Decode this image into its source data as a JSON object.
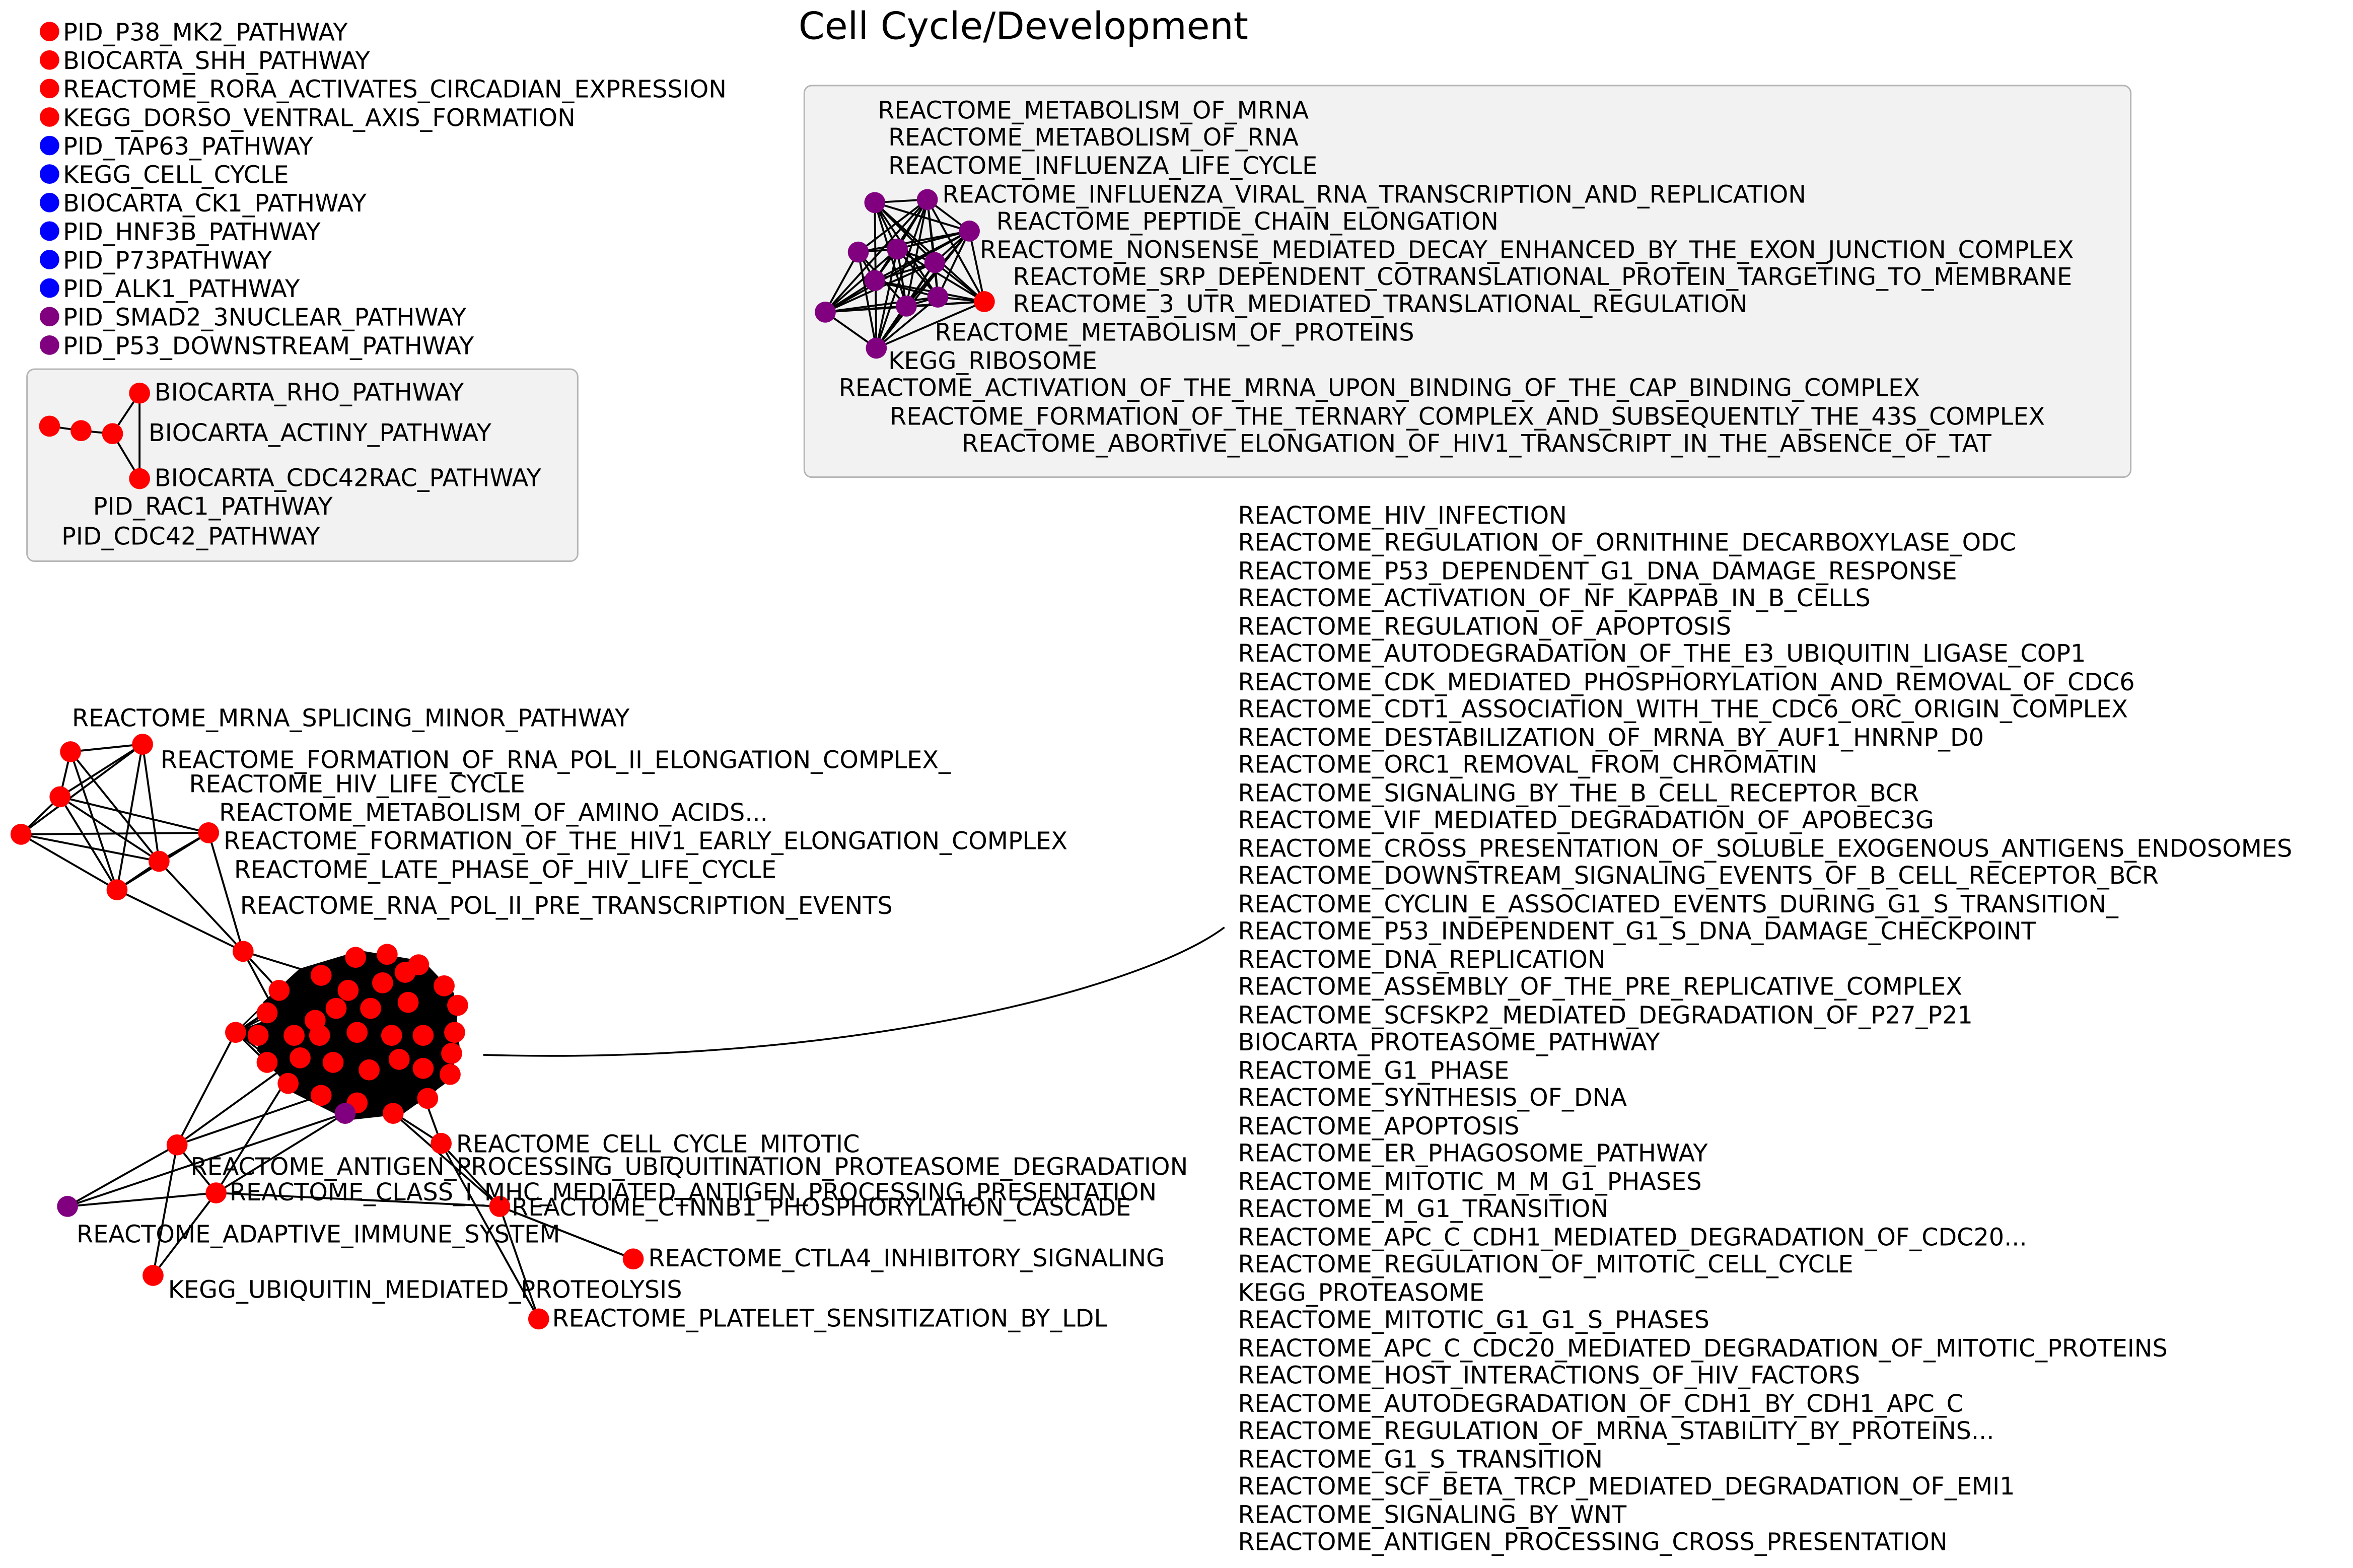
{
  "title": "Cell Cycle/Development",
  "colors": {
    "red": "#ff0000",
    "blue": "#0000ff",
    "purple": "#800080",
    "edge": "#000000"
  },
  "legend": [
    {
      "label": "PID_P38_MK2_PATHWAY",
      "color": "red"
    },
    {
      "label": "BIOCARTA_SHH_PATHWAY",
      "color": "red"
    },
    {
      "label": "REACTOME_RORA_ACTIVATES_CIRCADIAN_EXPRESSION",
      "color": "red"
    },
    {
      "label": "KEGG_DORSO_VENTRAL_AXIS_FORMATION",
      "color": "red"
    },
    {
      "label": "PID_TAP63_PATHWAY",
      "color": "blue"
    },
    {
      "label": "KEGG_CELL_CYCLE",
      "color": "blue"
    },
    {
      "label": "BIOCARTA_CK1_PATHWAY",
      "color": "blue"
    },
    {
      "label": "PID_HNF3B_PATHWAY",
      "color": "blue"
    },
    {
      "label": "PID_P73PATHWAY",
      "color": "blue"
    },
    {
      "label": "PID_ALK1_PATHWAY",
      "color": "blue"
    },
    {
      "label": "PID_SMAD2_3NUCLEAR_PATHWAY",
      "color": "purple"
    },
    {
      "label": "PID_P53_DOWNSTREAM_PATHWAY",
      "color": "purple"
    }
  ],
  "small_cluster": {
    "labels": [
      "BIOCARTA_RHO_PATHWAY",
      "BIOCARTA_ACTINY_PATHWAY",
      "BIOCARTA_CDC42RAC_PATHWAY",
      "PID_RAC1_PATHWAY",
      "PID_CDC42_PATHWAY"
    ]
  },
  "ribosome_cluster": {
    "labels": [
      "REACTOME_METABOLISM_OF_MRNA",
      "REACTOME_METABOLISM_OF_RNA",
      "REACTOME_INFLUENZA_LIFE_CYCLE",
      "REACTOME_INFLUENZA_VIRAL_RNA_TRANSCRIPTION_AND_REPLICATION",
      "REACTOME_PEPTIDE_CHAIN_ELONGATION",
      "REACTOME_NONSENSE_MEDIATED_DECAY_ENHANCED_BY_THE_EXON_JUNCTION_COMPLEX",
      "REACTOME_SRP_DEPENDENT_COTRANSLATIONAL_PROTEIN_TARGETING_TO_MEMBRANE",
      "REACTOME_3_UTR_MEDIATED_TRANSLATIONAL_REGULATION",
      "REACTOME_METABOLISM_OF_PROTEINS",
      "KEGG_RIBOSOME",
      "REACTOME_ACTIVATION_OF_THE_MRNA_UPON_BINDING_OF_THE_CAP_BINDING_COMPLEX",
      "REACTOME_FORMATION_OF_THE_TERNARY_COMPLEX_AND_SUBSEQUENTLY_THE_43S_COMPLEX",
      "REACTOME_ABORTIVE_ELONGATION_OF_HIV1_TRANSCRIPT_IN_THE_ABSENCE_OF_TAT"
    ]
  },
  "main_cluster": {
    "labels": [
      "REACTOME_MRNA_SPLICING_MINOR_PATHWAY",
      "REACTOME_FORMATION_OF_RNA_POL_II_ELONGATION_COMPLEX_",
      "REACTOME_HIV_LIFE_CYCLE",
      "REACTOME_METABOLISM_OF_AMINO_ACIDS...",
      "REACTOME_FORMATION_OF_THE_HIV1_EARLY_ELONGATION_COMPLEX",
      "REACTOME_LATE_PHASE_OF_HIV_LIFE_CYCLE",
      "REACTOME_RNA_POL_II_PRE_TRANSCRIPTION_EVENTS",
      "REACTOME_CELL_CYCLE_MITOTIC",
      "REACTOME_ANTIGEN_PROCESSING_UBIQUITINATION_PROTEASOME_DEGRADATION",
      "REACTOME_CLASS_I_MHC_MEDIATED_ANTIGEN_PROCESSING_PRESENTATION",
      "REACTOME_CTNNB1_PHOSPHORYLATION_CASCADE",
      "REACTOME_ADAPTIVE_IMMUNE_SYSTEM",
      "REACTOME_CTLA4_INHIBITORY_SIGNALING",
      "KEGG_UBIQUITIN_MEDIATED_PROTEOLYSIS",
      "REACTOME_PLATELET_SENSITIZATION_BY_LDL"
    ]
  },
  "callout_list": [
    "REACTOME_HIV_INFECTION",
    "REACTOME_REGULATION_OF_ORNITHINE_DECARBOXYLASE_ODC",
    "REACTOME_P53_DEPENDENT_G1_DNA_DAMAGE_RESPONSE",
    "REACTOME_ACTIVATION_OF_NF_KAPPAB_IN_B_CELLS",
    "REACTOME_REGULATION_OF_APOPTOSIS",
    "REACTOME_AUTODEGRADATION_OF_THE_E3_UBIQUITIN_LIGASE_COP1",
    "REACTOME_CDK_MEDIATED_PHOSPHORYLATION_AND_REMOVAL_OF_CDC6",
    "REACTOME_CDT1_ASSOCIATION_WITH_THE_CDC6_ORC_ORIGIN_COMPLEX",
    "REACTOME_DESTABILIZATION_OF_MRNA_BY_AUF1_HNRNP_D0",
    "REACTOME_ORC1_REMOVAL_FROM_CHROMATIN",
    "REACTOME_SIGNALING_BY_THE_B_CELL_RECEPTOR_BCR",
    "REACTOME_VIF_MEDIATED_DEGRADATION_OF_APOBEC3G",
    "REACTOME_CROSS_PRESENTATION_OF_SOLUBLE_EXOGENOUS_ANTIGENS_ENDOSOMES",
    "REACTOME_DOWNSTREAM_SIGNALING_EVENTS_OF_B_CELL_RECEPTOR_BCR",
    "REACTOME_CYCLIN_E_ASSOCIATED_EVENTS_DURING_G1_S_TRANSITION_",
    "REACTOME_P53_INDEPENDENT_G1_S_DNA_DAMAGE_CHECKPOINT",
    "REACTOME_DNA_REPLICATION",
    "REACTOME_ASSEMBLY_OF_THE_PRE_REPLICATIVE_COMPLEX",
    "REACTOME_SCFSKP2_MEDIATED_DEGRADATION_OF_P27_P21",
    "BIOCARTA_PROTEASOME_PATHWAY",
    "REACTOME_G1_PHASE",
    "REACTOME_SYNTHESIS_OF_DNA",
    "REACTOME_APOPTOSIS",
    "REACTOME_ER_PHAGOSOME_PATHWAY",
    "REACTOME_MITOTIC_M_M_G1_PHASES",
    "REACTOME_M_G1_TRANSITION",
    "REACTOME_APC_C_CDH1_MEDIATED_DEGRADATION_OF_CDC20...",
    "REACTOME_REGULATION_OF_MITOTIC_CELL_CYCLE",
    "KEGG_PROTEASOME",
    "REACTOME_MITOTIC_G1_G1_S_PHASES",
    "REACTOME_APC_C_CDC20_MEDIATED_DEGRADATION_OF_MITOTIC_PROTEINS",
    "REACTOME_HOST_INTERACTIONS_OF_HIV_FACTORS",
    "REACTOME_AUTODEGRADATION_OF_CDH1_BY_CDH1_APC_C",
    "REACTOME_REGULATION_OF_MRNA_STABILITY_BY_PROTEINS...",
    "REACTOME_G1_S_TRANSITION",
    "REACTOME_SCF_BETA_TRCP_MEDIATED_DEGRADATION_OF_EMI1",
    "REACTOME_SIGNALING_BY_WNT",
    "REACTOME_ANTIGEN_PROCESSING_CROSS_PRESENTATION"
  ]
}
